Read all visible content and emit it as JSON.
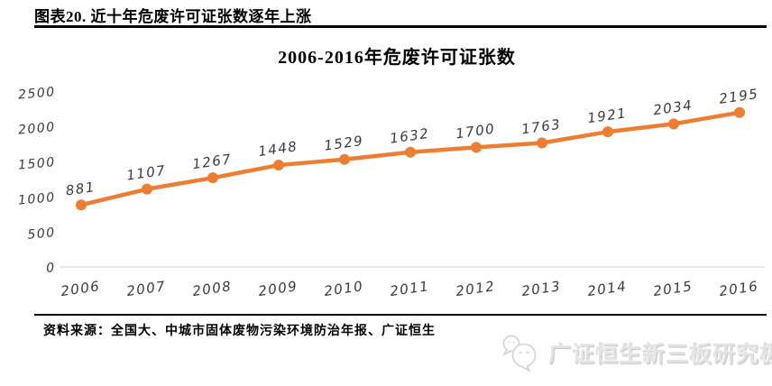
{
  "header": {
    "caption": "图表20. 近十年危废许可证张数逐年上涨"
  },
  "chart_data": {
    "type": "line",
    "title": "2006-2016年危废许可证张数",
    "categories": [
      "2006",
      "2007",
      "2008",
      "2009",
      "2010",
      "2011",
      "2012",
      "2013",
      "2014",
      "2015",
      "2016"
    ],
    "values": [
      881,
      1107,
      1267,
      1448,
      1529,
      1632,
      1700,
      1763,
      1921,
      2034,
      2195
    ],
    "ylim": [
      0,
      2500
    ],
    "yticks": [
      0,
      500,
      1000,
      1500,
      2000,
      2500
    ],
    "line_color": "#ED7D31",
    "marker_color": "#ED7D31",
    "label_color": "#3b3b3b",
    "axis_line_color": "#d9d9d9",
    "grid": false,
    "legend_position": "none",
    "data_labels": true
  },
  "footer": {
    "source": "资料来源：全国大、中城市固体废物污染环境防治年报、广证恒生",
    "logo": {
      "icon": "chat-bubbles-icon",
      "text": "广证恒生新三板研究极客"
    }
  }
}
